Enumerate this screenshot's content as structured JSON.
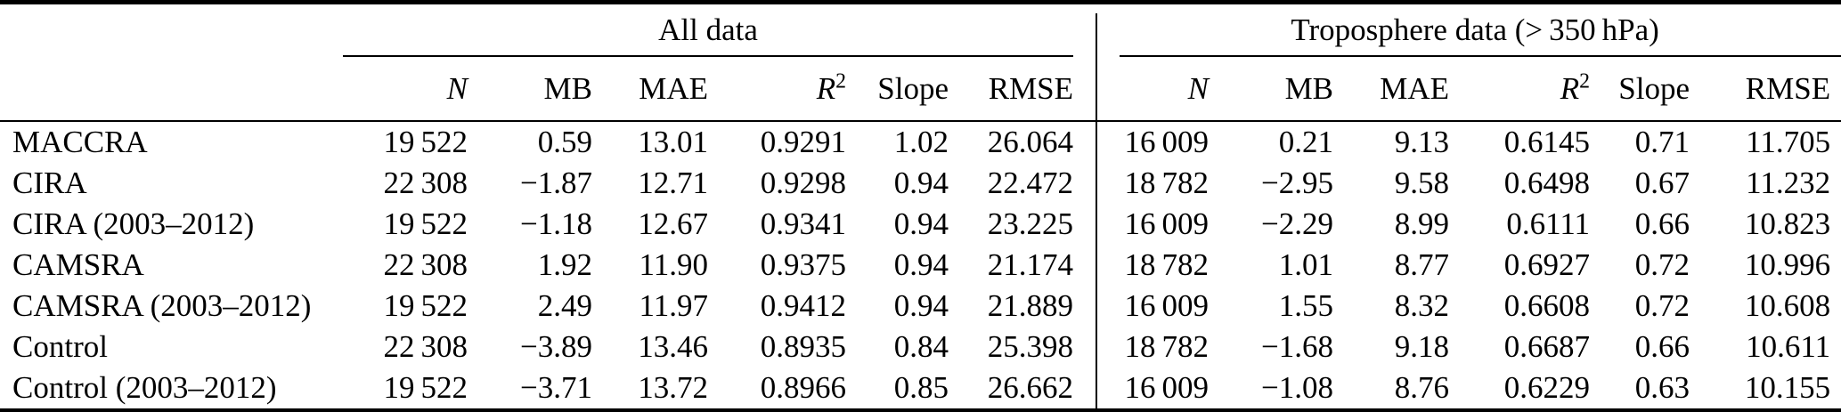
{
  "table": {
    "group_headers": [
      "All data",
      "Troposphere data (> 350 hPa)"
    ],
    "columns": [
      {
        "text": "N",
        "sup": "",
        "italic": true
      },
      {
        "text": "MB",
        "sup": "",
        "italic": false
      },
      {
        "text": "MAE",
        "sup": "",
        "italic": false
      },
      {
        "text": "R",
        "sup": "2",
        "italic": true
      },
      {
        "text": "Slope",
        "sup": "",
        "italic": false
      },
      {
        "text": "RMSE",
        "sup": "",
        "italic": false
      }
    ],
    "rows": [
      {
        "label": "MACCRA",
        "all": [
          "19 522",
          "0.59",
          "13.01",
          "0.9291",
          "1.02",
          "26.064"
        ],
        "tropo": [
          "16 009",
          "0.21",
          "9.13",
          "0.6145",
          "0.71",
          "11.705"
        ]
      },
      {
        "label": "CIRA",
        "all": [
          "22 308",
          "−1.87",
          "12.71",
          "0.9298",
          "0.94",
          "22.472"
        ],
        "tropo": [
          "18 782",
          "−2.95",
          "9.58",
          "0.6498",
          "0.67",
          "11.232"
        ]
      },
      {
        "label": "CIRA (2003–2012)",
        "all": [
          "19 522",
          "−1.18",
          "12.67",
          "0.9341",
          "0.94",
          "23.225"
        ],
        "tropo": [
          "16 009",
          "−2.29",
          "8.99",
          "0.6111",
          "0.66",
          "10.823"
        ]
      },
      {
        "label": "CAMSRA",
        "all": [
          "22 308",
          "1.92",
          "11.90",
          "0.9375",
          "0.94",
          "21.174"
        ],
        "tropo": [
          "18 782",
          "1.01",
          "8.77",
          "0.6927",
          "0.72",
          "10.996"
        ]
      },
      {
        "label": "CAMSRA (2003–2012)",
        "all": [
          "19 522",
          "2.49",
          "11.97",
          "0.9412",
          "0.94",
          "21.889"
        ],
        "tropo": [
          "16 009",
          "1.55",
          "8.32",
          "0.6608",
          "0.72",
          "10.608"
        ]
      },
      {
        "label": "Control",
        "all": [
          "22 308",
          "−3.89",
          "13.46",
          "0.8935",
          "0.84",
          "25.398"
        ],
        "tropo": [
          "18 782",
          "−1.68",
          "9.18",
          "0.6687",
          "0.66",
          "10.611"
        ]
      },
      {
        "label": "Control (2003–2012)",
        "all": [
          "19 522",
          "−3.71",
          "13.72",
          "0.8966",
          "0.85",
          "26.662"
        ],
        "tropo": [
          "16 009",
          "−1.08",
          "8.76",
          "0.6229",
          "0.63",
          "10.155"
        ]
      }
    ]
  }
}
